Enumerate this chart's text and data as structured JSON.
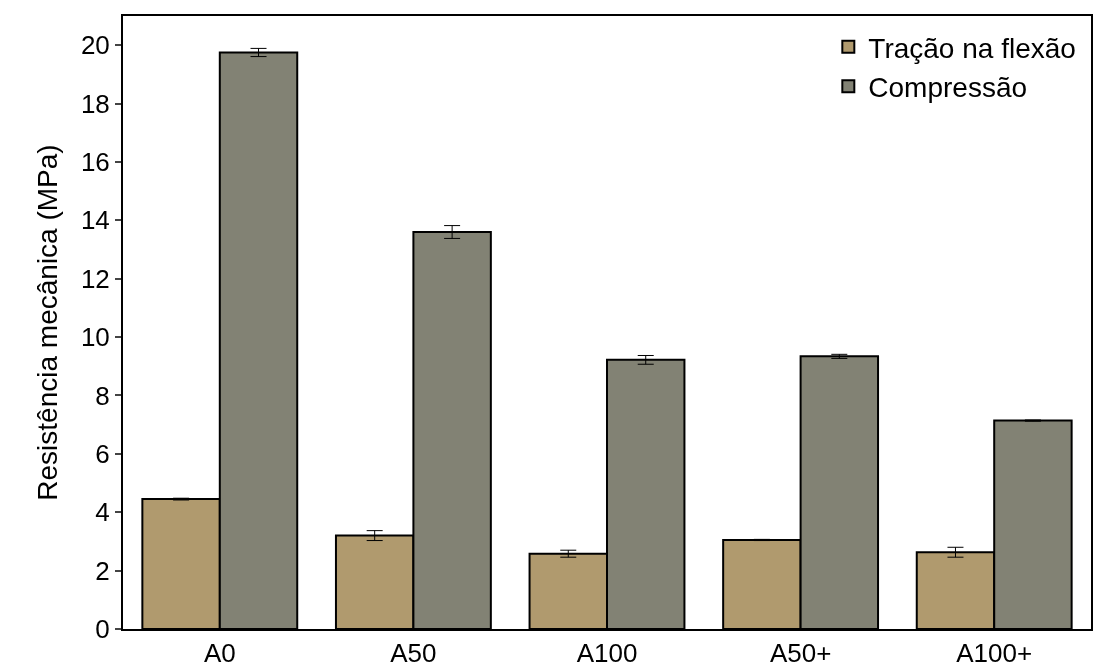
{
  "chart_data": {
    "type": "bar",
    "ylabel": "Resistência mecânica (MPa)",
    "categories": [
      "A0",
      "A50",
      "A100",
      "A50+",
      "A100+"
    ],
    "series": [
      {
        "name": "Tração na flexão",
        "color": "#b09a6e",
        "values": [
          4.45,
          3.2,
          2.58,
          3.05,
          2.63
        ],
        "errors": [
          0.03,
          0.17,
          0.12,
          0.02,
          0.17
        ]
      },
      {
        "name": "Compressão",
        "color": "#828274",
        "values": [
          19.75,
          13.6,
          9.22,
          9.34,
          7.14
        ],
        "errors": [
          0.14,
          0.22,
          0.15,
          0.07,
          0.02
        ]
      }
    ],
    "ylim": [
      0,
      21
    ],
    "yticks": [
      0,
      2,
      4,
      6,
      8,
      10,
      12,
      14,
      16,
      18,
      20
    ],
    "legend": "top right"
  }
}
